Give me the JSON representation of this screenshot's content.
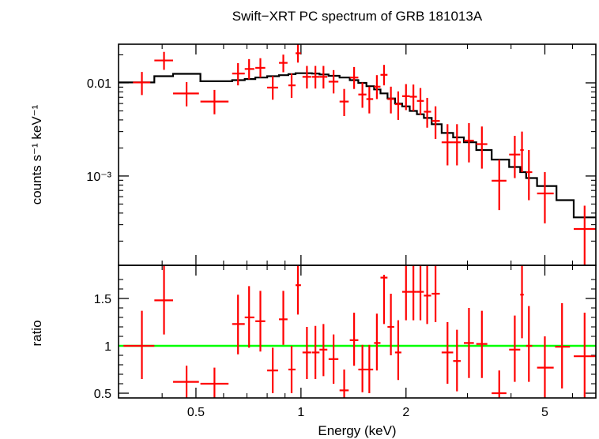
{
  "chart_data": {
    "type": "scatter",
    "title": "Swift−XRT PC spectrum of GRB 181013A",
    "xlabel": "Energy (keV)",
    "xscale": "log",
    "xlim": [
      0.3,
      7.0
    ],
    "x_ticks": [
      {
        "value": 0.5,
        "label": "0.5"
      },
      {
        "value": 1,
        "label": "1"
      },
      {
        "value": 2,
        "label": "2"
      },
      {
        "value": 5,
        "label": "5"
      }
    ],
    "colors": {
      "data": "#ff0000",
      "model": "#000000",
      "reference": "#00ff00"
    },
    "panels": [
      {
        "name": "spectrum",
        "ylabel": "counts s⁻¹ keV⁻¹",
        "yscale": "log",
        "ylim": [
          0.00011,
          0.026
        ],
        "y_ticks": [
          {
            "value": 0.01,
            "label": "0.01"
          },
          {
            "value": 0.001,
            "label": "10⁻³"
          }
        ],
        "data": [
          {
            "x": 0.35,
            "xlo": 0.33,
            "xhi": 0.37,
            "y": 0.0101,
            "ylo": 0.0074,
            "yhi": 0.0131
          },
          {
            "x": 0.405,
            "xlo": 0.38,
            "xhi": 0.43,
            "y": 0.0174,
            "ylo": 0.0138,
            "yhi": 0.0215
          },
          {
            "x": 0.47,
            "xlo": 0.43,
            "xhi": 0.51,
            "y": 0.0077,
            "ylo": 0.0056,
            "yhi": 0.0102
          },
          {
            "x": 0.565,
            "xlo": 0.515,
            "xhi": 0.62,
            "y": 0.0063,
            "ylo": 0.0046,
            "yhi": 0.0084
          },
          {
            "x": 0.66,
            "xlo": 0.635,
            "xhi": 0.69,
            "y": 0.0126,
            "ylo": 0.0094,
            "yhi": 0.0163
          },
          {
            "x": 0.71,
            "xlo": 0.69,
            "xhi": 0.735,
            "y": 0.0141,
            "ylo": 0.0109,
            "yhi": 0.018
          },
          {
            "x": 0.765,
            "xlo": 0.74,
            "xhi": 0.79,
            "y": 0.0145,
            "ylo": 0.0114,
            "yhi": 0.0184
          },
          {
            "x": 0.83,
            "xlo": 0.8,
            "xhi": 0.86,
            "y": 0.0089,
            "ylo": 0.0066,
            "yhi": 0.0118
          },
          {
            "x": 0.89,
            "xlo": 0.865,
            "xhi": 0.915,
            "y": 0.0164,
            "ylo": 0.013,
            "yhi": 0.0201
          },
          {
            "x": 0.94,
            "xlo": 0.92,
            "xhi": 0.965,
            "y": 0.0094,
            "ylo": 0.0069,
            "yhi": 0.0126
          },
          {
            "x": 0.98,
            "xlo": 0.965,
            "xhi": 1.0,
            "y": 0.0208,
            "ylo": 0.0165,
            "yhi": 0.026
          },
          {
            "x": 1.04,
            "xlo": 1.01,
            "xhi": 1.07,
            "y": 0.0116,
            "ylo": 0.0087,
            "yhi": 0.0152
          },
          {
            "x": 1.1,
            "xlo": 1.075,
            "xhi": 1.13,
            "y": 0.0116,
            "ylo": 0.0087,
            "yhi": 0.0152
          },
          {
            "x": 1.16,
            "xlo": 1.13,
            "xhi": 1.19,
            "y": 0.0116,
            "ylo": 0.0087,
            "yhi": 0.0152
          },
          {
            "x": 1.24,
            "xlo": 1.2,
            "xhi": 1.28,
            "y": 0.0103,
            "ylo": 0.0077,
            "yhi": 0.0137
          },
          {
            "x": 1.33,
            "xlo": 1.29,
            "xhi": 1.37,
            "y": 0.0063,
            "ylo": 0.0044,
            "yhi": 0.0086
          },
          {
            "x": 1.42,
            "xlo": 1.38,
            "xhi": 1.46,
            "y": 0.0114,
            "ylo": 0.0086,
            "yhi": 0.0148
          },
          {
            "x": 1.5,
            "xlo": 1.46,
            "xhi": 1.54,
            "y": 0.0075,
            "ylo": 0.0054,
            "yhi": 0.0101
          },
          {
            "x": 1.57,
            "xlo": 1.54,
            "xhi": 1.61,
            "y": 0.0067,
            "ylo": 0.0047,
            "yhi": 0.0091
          },
          {
            "x": 1.65,
            "xlo": 1.62,
            "xhi": 1.69,
            "y": 0.0091,
            "ylo": 0.0067,
            "yhi": 0.0121
          },
          {
            "x": 1.73,
            "xlo": 1.69,
            "xhi": 1.77,
            "y": 0.0122,
            "ylo": 0.0094,
            "yhi": 0.0156
          },
          {
            "x": 1.81,
            "xlo": 1.77,
            "xhi": 1.85,
            "y": 0.0067,
            "ylo": 0.0047,
            "yhi": 0.0091
          },
          {
            "x": 1.9,
            "xlo": 1.86,
            "xhi": 1.94,
            "y": 0.0059,
            "ylo": 0.004,
            "yhi": 0.0081
          },
          {
            "x": 2.0,
            "xlo": 1.95,
            "xhi": 2.05,
            "y": 0.0072,
            "ylo": 0.0051,
            "yhi": 0.0097
          },
          {
            "x": 2.1,
            "xlo": 2.05,
            "xhi": 2.15,
            "y": 0.0071,
            "ylo": 0.005,
            "yhi": 0.0096
          },
          {
            "x": 2.2,
            "xlo": 2.15,
            "xhi": 2.25,
            "y": 0.0064,
            "ylo": 0.0045,
            "yhi": 0.0088
          },
          {
            "x": 2.3,
            "xlo": 2.25,
            "xhi": 2.36,
            "y": 0.0049,
            "ylo": 0.0033,
            "yhi": 0.0069
          },
          {
            "x": 2.43,
            "xlo": 2.37,
            "xhi": 2.5,
            "y": 0.0039,
            "ylo": 0.0025,
            "yhi": 0.0056
          },
          {
            "x": 2.63,
            "xlo": 2.53,
            "xhi": 2.73,
            "y": 0.0023,
            "ylo": 0.0013,
            "yhi": 0.0036
          },
          {
            "x": 2.8,
            "xlo": 2.73,
            "xhi": 2.87,
            "y": 0.0023,
            "ylo": 0.0013,
            "yhi": 0.0036
          },
          {
            "x": 3.03,
            "xlo": 2.93,
            "xhi": 3.13,
            "y": 0.0024,
            "ylo": 0.0014,
            "yhi": 0.0037
          },
          {
            "x": 3.3,
            "xlo": 3.18,
            "xhi": 3.42,
            "y": 0.0022,
            "ylo": 0.0012,
            "yhi": 0.0034
          },
          {
            "x": 3.7,
            "xlo": 3.52,
            "xhi": 3.88,
            "y": 0.00089,
            "ylo": 0.00043,
            "yhi": 0.0015
          },
          {
            "x": 4.1,
            "xlo": 3.95,
            "xhi": 4.25,
            "y": 0.0017,
            "ylo": 0.00095,
            "yhi": 0.0027
          },
          {
            "x": 4.3,
            "xlo": 4.25,
            "xhi": 4.35,
            "y": 0.0019,
            "ylo": 0.0011,
            "yhi": 0.003
          },
          {
            "x": 4.5,
            "xlo": 4.42,
            "xhi": 4.6,
            "y": 0.0011,
            "ylo": 0.00055,
            "yhi": 0.0019
          },
          {
            "x": 5.0,
            "xlo": 4.75,
            "xhi": 5.3,
            "y": 0.00065,
            "ylo": 0.00031,
            "yhi": 0.0011
          },
          {
            "x": 6.5,
            "xlo": 6.05,
            "xhi": 7.0,
            "y": 0.00027,
            "ylo": 0.00011,
            "yhi": 0.00048
          }
        ],
        "model": [
          {
            "xlo": 0.3,
            "xhi": 0.38,
            "y": 0.0101
          },
          {
            "xlo": 0.38,
            "xhi": 0.43,
            "y": 0.0118
          },
          {
            "xlo": 0.43,
            "xhi": 0.515,
            "y": 0.0125
          },
          {
            "xlo": 0.515,
            "xhi": 0.635,
            "y": 0.0104
          },
          {
            "xlo": 0.635,
            "xhi": 0.69,
            "y": 0.0107
          },
          {
            "xlo": 0.69,
            "xhi": 0.74,
            "y": 0.011
          },
          {
            "xlo": 0.74,
            "xhi": 0.8,
            "y": 0.0114
          },
          {
            "xlo": 0.8,
            "xhi": 0.865,
            "y": 0.0118
          },
          {
            "xlo": 0.865,
            "xhi": 0.92,
            "y": 0.0121
          },
          {
            "xlo": 0.92,
            "xhi": 0.965,
            "y": 0.0124
          },
          {
            "xlo": 0.965,
            "xhi": 1.075,
            "y": 0.0127
          },
          {
            "xlo": 1.075,
            "xhi": 1.13,
            "y": 0.0126
          },
          {
            "xlo": 1.13,
            "xhi": 1.2,
            "y": 0.0123
          },
          {
            "xlo": 1.2,
            "xhi": 1.29,
            "y": 0.0119
          },
          {
            "xlo": 1.29,
            "xhi": 1.38,
            "y": 0.0114
          },
          {
            "xlo": 1.38,
            "xhi": 1.46,
            "y": 0.0107
          },
          {
            "xlo": 1.46,
            "xhi": 1.54,
            "y": 0.01
          },
          {
            "xlo": 1.54,
            "xhi": 1.62,
            "y": 0.0092
          },
          {
            "xlo": 1.62,
            "xhi": 1.69,
            "y": 0.0085
          },
          {
            "xlo": 1.69,
            "xhi": 1.77,
            "y": 0.0077
          },
          {
            "xlo": 1.77,
            "xhi": 1.86,
            "y": 0.0068
          },
          {
            "xlo": 1.86,
            "xhi": 1.95,
            "y": 0.006
          },
          {
            "xlo": 1.95,
            "xhi": 2.05,
            "y": 0.0056
          },
          {
            "xlo": 2.05,
            "xhi": 2.15,
            "y": 0.005
          },
          {
            "xlo": 2.15,
            "xhi": 2.25,
            "y": 0.0046
          },
          {
            "xlo": 2.25,
            "xhi": 2.37,
            "y": 0.0042
          },
          {
            "xlo": 2.37,
            "xhi": 2.53,
            "y": 0.0036
          },
          {
            "xlo": 2.53,
            "xhi": 2.73,
            "y": 0.0029
          },
          {
            "xlo": 2.73,
            "xhi": 2.93,
            "y": 0.0026
          },
          {
            "xlo": 2.93,
            "xhi": 3.18,
            "y": 0.0023
          },
          {
            "xlo": 3.18,
            "xhi": 3.52,
            "y": 0.0019
          },
          {
            "xlo": 3.52,
            "xhi": 3.95,
            "y": 0.0015
          },
          {
            "xlo": 3.95,
            "xhi": 4.25,
            "y": 0.00125
          },
          {
            "xlo": 4.25,
            "xhi": 4.42,
            "y": 0.0011
          },
          {
            "xlo": 4.42,
            "xhi": 4.75,
            "y": 0.00095
          },
          {
            "xlo": 4.75,
            "xhi": 5.4,
            "y": 0.00078
          },
          {
            "xlo": 5.4,
            "xhi": 6.05,
            "y": 0.00055
          },
          {
            "xlo": 6.05,
            "xhi": 7.0,
            "y": 0.00036
          }
        ]
      },
      {
        "name": "ratio",
        "ylabel": "ratio",
        "yscale": "linear",
        "ylim": [
          0.45,
          1.85
        ],
        "y_ticks": [
          {
            "value": 0.5,
            "label": "0.5"
          },
          {
            "value": 1,
            "label": "1"
          },
          {
            "value": 1.5,
            "label": "1.5"
          }
        ],
        "reference_y": 1,
        "data": [
          {
            "x": 0.35,
            "xlo": 0.31,
            "xhi": 0.38,
            "y": 1.0,
            "ylo": 0.65,
            "yhi": 1.37
          },
          {
            "x": 0.405,
            "xlo": 0.38,
            "xhi": 0.43,
            "y": 1.48,
            "ylo": 1.12,
            "yhi": 1.85
          },
          {
            "x": 0.47,
            "xlo": 0.43,
            "xhi": 0.51,
            "y": 0.62,
            "ylo": 0.45,
            "yhi": 0.79
          },
          {
            "x": 0.565,
            "xlo": 0.515,
            "xhi": 0.62,
            "y": 0.6,
            "ylo": 0.45,
            "yhi": 0.77
          },
          {
            "x": 0.66,
            "xlo": 0.635,
            "xhi": 0.69,
            "y": 1.23,
            "ylo": 0.91,
            "yhi": 1.54
          },
          {
            "x": 0.71,
            "xlo": 0.69,
            "xhi": 0.735,
            "y": 1.3,
            "ylo": 0.98,
            "yhi": 1.63
          },
          {
            "x": 0.765,
            "xlo": 0.74,
            "xhi": 0.79,
            "y": 1.26,
            "ylo": 0.94,
            "yhi": 1.58
          },
          {
            "x": 0.83,
            "xlo": 0.8,
            "xhi": 0.86,
            "y": 0.74,
            "ylo": 0.5,
            "yhi": 0.98
          },
          {
            "x": 0.89,
            "xlo": 0.865,
            "xhi": 0.915,
            "y": 1.28,
            "ylo": 1.01,
            "yhi": 1.58
          },
          {
            "x": 0.94,
            "xlo": 0.92,
            "xhi": 0.965,
            "y": 0.75,
            "ylo": 0.5,
            "yhi": 1.0
          },
          {
            "x": 0.98,
            "xlo": 0.965,
            "xhi": 1.0,
            "y": 1.64,
            "ylo": 1.33,
            "yhi": 1.85
          },
          {
            "x": 1.04,
            "xlo": 1.01,
            "xhi": 1.07,
            "y": 0.93,
            "ylo": 0.65,
            "yhi": 1.2
          },
          {
            "x": 1.1,
            "xlo": 1.075,
            "xhi": 1.13,
            "y": 0.93,
            "ylo": 0.65,
            "yhi": 1.21
          },
          {
            "x": 1.16,
            "xlo": 1.13,
            "xhi": 1.19,
            "y": 0.96,
            "ylo": 0.68,
            "yhi": 1.23
          },
          {
            "x": 1.24,
            "xlo": 1.2,
            "xhi": 1.28,
            "y": 0.86,
            "ylo": 0.6,
            "yhi": 1.12
          },
          {
            "x": 1.33,
            "xlo": 1.29,
            "xhi": 1.37,
            "y": 0.53,
            "ylo": 0.45,
            "yhi": 0.75
          },
          {
            "x": 1.42,
            "xlo": 1.38,
            "xhi": 1.46,
            "y": 1.06,
            "ylo": 0.79,
            "yhi": 1.35
          },
          {
            "x": 1.5,
            "xlo": 1.46,
            "xhi": 1.54,
            "y": 0.75,
            "ylo": 0.51,
            "yhi": 1.01
          },
          {
            "x": 1.57,
            "xlo": 1.54,
            "xhi": 1.61,
            "y": 0.75,
            "ylo": 0.5,
            "yhi": 1.01
          },
          {
            "x": 1.65,
            "xlo": 1.62,
            "xhi": 1.69,
            "y": 1.03,
            "ylo": 0.74,
            "yhi": 1.34
          },
          {
            "x": 1.73,
            "xlo": 1.69,
            "xhi": 1.77,
            "y": 1.72,
            "ylo": 1.23,
            "yhi": 1.75
          },
          {
            "x": 1.81,
            "xlo": 1.77,
            "xhi": 1.85,
            "y": 1.2,
            "ylo": 0.9,
            "yhi": 1.55
          },
          {
            "x": 1.9,
            "xlo": 1.86,
            "xhi": 1.94,
            "y": 0.93,
            "ylo": 0.64,
            "yhi": 1.27
          },
          {
            "x": 2.0,
            "xlo": 1.95,
            "xhi": 2.05,
            "y": 1.57,
            "ylo": 1.27,
            "yhi": 1.85
          },
          {
            "x": 2.1,
            "xlo": 2.05,
            "xhi": 2.15,
            "y": 1.57,
            "ylo": 1.27,
            "yhi": 1.85
          },
          {
            "x": 2.2,
            "xlo": 2.15,
            "xhi": 2.25,
            "y": 1.57,
            "ylo": 1.27,
            "yhi": 1.85
          },
          {
            "x": 2.3,
            "xlo": 2.25,
            "xhi": 2.36,
            "y": 1.53,
            "ylo": 1.23,
            "yhi": 1.85
          },
          {
            "x": 2.43,
            "xlo": 2.37,
            "xhi": 2.5,
            "y": 1.55,
            "ylo": 1.25,
            "yhi": 1.85
          },
          {
            "x": 2.63,
            "xlo": 2.53,
            "xhi": 2.73,
            "y": 0.93,
            "ylo": 0.6,
            "yhi": 1.25
          },
          {
            "x": 2.8,
            "xlo": 2.73,
            "xhi": 2.87,
            "y": 0.84,
            "ylo": 0.52,
            "yhi": 1.17
          },
          {
            "x": 3.03,
            "xlo": 2.93,
            "xhi": 3.13,
            "y": 1.03,
            "ylo": 0.66,
            "yhi": 1.4
          },
          {
            "x": 3.3,
            "xlo": 3.18,
            "xhi": 3.42,
            "y": 1.02,
            "ylo": 0.66,
            "yhi": 1.37
          },
          {
            "x": 3.7,
            "xlo": 3.52,
            "xhi": 3.88,
            "y": 0.5,
            "ylo": 0.45,
            "yhi": 0.74
          },
          {
            "x": 4.1,
            "xlo": 3.95,
            "xhi": 4.25,
            "y": 0.96,
            "ylo": 0.62,
            "yhi": 1.32
          },
          {
            "x": 4.3,
            "xlo": 4.25,
            "xhi": 4.35,
            "y": 1.54,
            "ylo": 1.08,
            "yhi": 1.85
          },
          {
            "x": 4.5,
            "xlo": 4.42,
            "xhi": 4.6,
            "y": 1.0,
            "ylo": 0.62,
            "yhi": 1.42
          },
          {
            "x": 5.0,
            "xlo": 4.75,
            "xhi": 5.3,
            "y": 0.77,
            "ylo": 0.45,
            "yhi": 1.1
          },
          {
            "x": 5.6,
            "xlo": 5.35,
            "xhi": 5.9,
            "y": 0.99,
            "ylo": 0.55,
            "yhi": 1.45
          },
          {
            "x": 6.5,
            "xlo": 6.05,
            "xhi": 7.0,
            "y": 0.89,
            "ylo": 0.45,
            "yhi": 1.35
          }
        ]
      }
    ]
  }
}
